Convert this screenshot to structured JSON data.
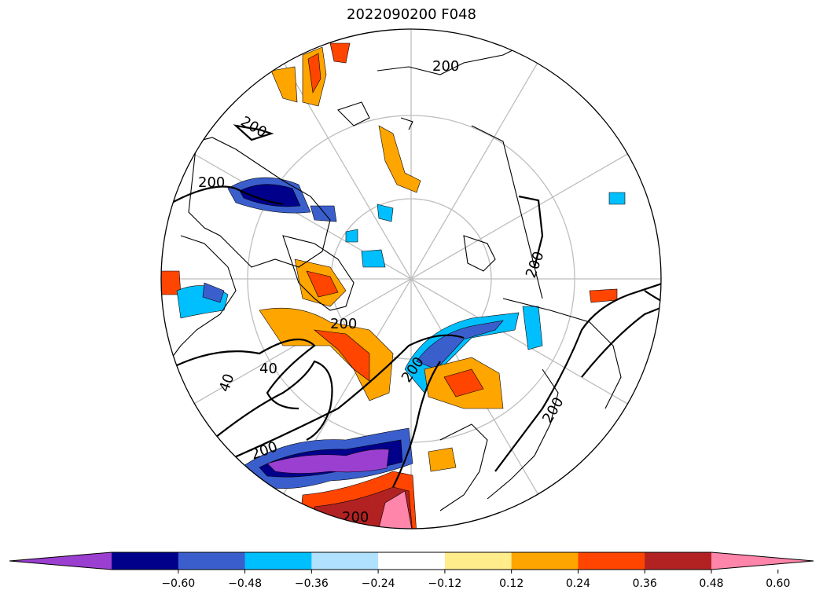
{
  "title": "2022090200 F048",
  "colorbar": {
    "tick_labels": [
      "−0.60",
      "−0.48",
      "−0.36",
      "−0.24",
      "−0.12",
      "0.12",
      "0.24",
      "0.36",
      "0.48",
      "0.60"
    ],
    "colors": [
      "#9a3fd0",
      "#00008b",
      "#3a5fcd",
      "#00bfff",
      "#b0e2ff",
      "#ffffff",
      "#ffec8b",
      "#ffa500",
      "#ff4500",
      "#b22222",
      "#ff85aa"
    ],
    "extend": "both"
  },
  "contour_labels": [
    "200",
    "200",
    "200",
    "200",
    "200",
    "40",
    "40",
    "200",
    "200",
    "200",
    "200"
  ],
  "map": {
    "projection": "north-polar-stereographic",
    "graticule_color": "#bebebe",
    "coastline_color": "#000000"
  }
}
